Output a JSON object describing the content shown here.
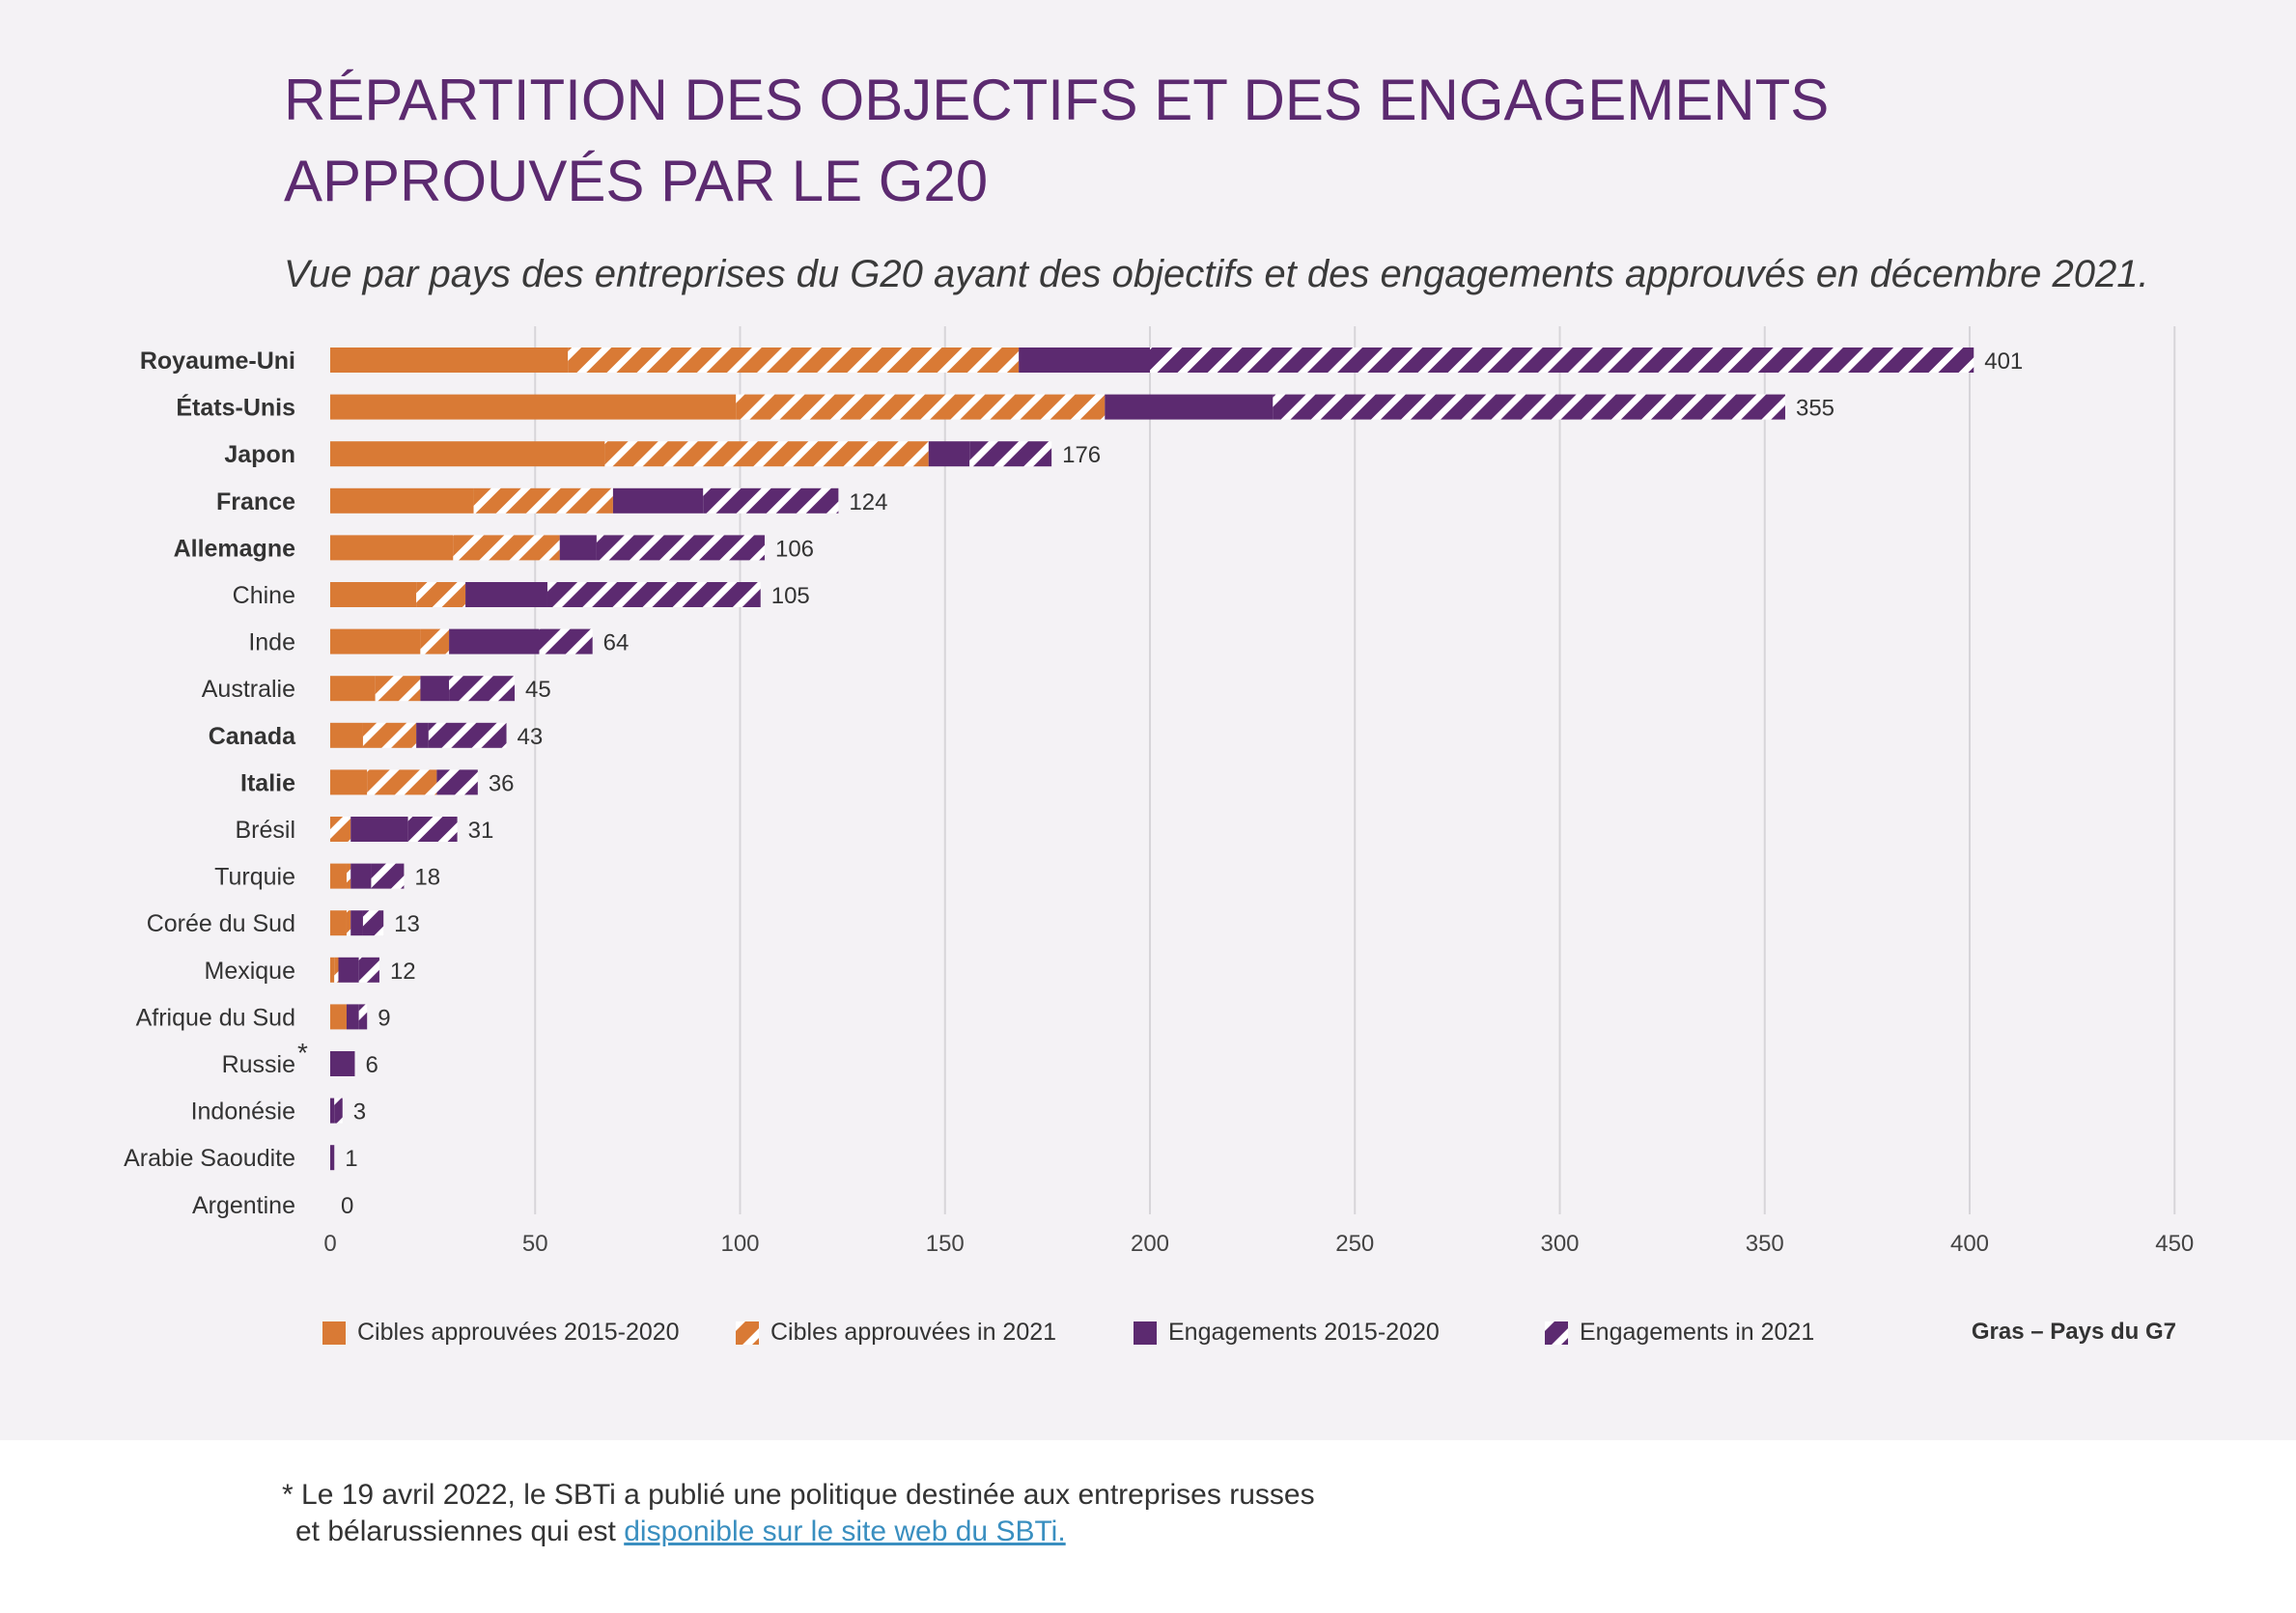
{
  "title_lines": [
    "RÉPARTITION DES OBJECTIFS ET DES ENGAGEMENTS",
    "APPROUVÉS PAR LE G20"
  ],
  "subtitle": "Vue par pays des entreprises du G20 ayant des objectifs et des engagements approuvés en décembre 2021.",
  "colors": {
    "orange": "#d97a35",
    "purple": "#5c2a70",
    "title": "#5c2a70",
    "grid": "#d7d5d9",
    "link": "#3a8fc0"
  },
  "chart_data": {
    "type": "bar",
    "orientation": "horizontal",
    "stacked": true,
    "categories": [
      "Royaume-Uni",
      "États-Unis",
      "Japon",
      "France",
      "Allemagne",
      "Chine",
      "Inde",
      "Australie",
      "Canada",
      "Italie",
      "Brésil",
      "Turquie",
      "Corée du Sud",
      "Mexique",
      "Afrique du Sud",
      "Russie",
      "Indonésie",
      "Arabie Saoudite",
      "Argentine"
    ],
    "bold_categories": [
      "Royaume-Uni",
      "États-Unis",
      "Japon",
      "France",
      "Allemagne",
      "Canada",
      "Italie"
    ],
    "asterisk_categories": [
      "Russie"
    ],
    "series": [
      {
        "name": "Cibles approuvées 2015-2020",
        "pattern": "solid",
        "color": "orange",
        "values": [
          58,
          99,
          67,
          35,
          30,
          21,
          22,
          11,
          8,
          9,
          0,
          4,
          4,
          1,
          4,
          0,
          0,
          0,
          0
        ]
      },
      {
        "name": "Cibles approuvées in 2021",
        "pattern": "hatched",
        "color": "orange",
        "values": [
          110,
          90,
          79,
          34,
          26,
          12,
          7,
          11,
          13,
          17,
          5,
          1,
          1,
          1,
          0,
          0,
          0,
          0,
          0
        ]
      },
      {
        "name": "Engagements 2015-2020",
        "pattern": "solid",
        "color": "purple",
        "values": [
          32,
          41,
          10,
          22,
          9,
          20,
          22,
          7,
          3,
          0,
          14,
          5,
          3,
          5,
          3,
          6,
          1,
          1,
          0
        ]
      },
      {
        "name": "Engagements  in 2021",
        "pattern": "hatched",
        "color": "purple",
        "values": [
          201,
          125,
          20,
          33,
          41,
          52,
          13,
          16,
          19,
          10,
          12,
          8,
          5,
          5,
          2,
          0,
          2,
          0,
          0
        ]
      }
    ],
    "totals": [
      401,
      355,
      176,
      124,
      106,
      105,
      64,
      45,
      43,
      36,
      31,
      18,
      13,
      12,
      9,
      6,
      3,
      1,
      0
    ],
    "xlim": [
      0,
      450
    ],
    "xticks": [
      0,
      50,
      100,
      150,
      200,
      250,
      300,
      350,
      400,
      450
    ],
    "grid": true,
    "legend_position": "bottom"
  },
  "legend_note": "Gras – Pays du G7",
  "footnote": {
    "marker": "*",
    "line1": "Le 19 avril 2022, le SBTi a publié une politique destinée aux entreprises russes",
    "line2_text": "et bélarussiennes qui est ",
    "link_text": "disponible sur le site web du SBTi."
  }
}
